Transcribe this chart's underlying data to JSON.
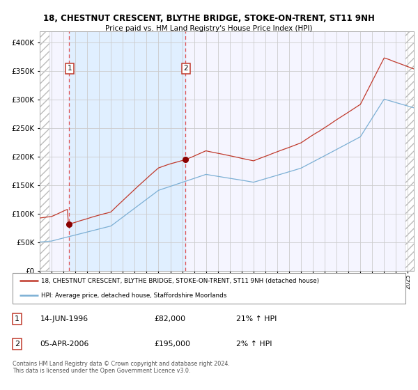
{
  "title": "18, CHESTNUT CRESCENT, BLYTHE BRIDGE, STOKE-ON-TRENT, ST11 9NH",
  "subtitle": "Price paid vs. HM Land Registry's House Price Index (HPI)",
  "sale1_x": 1996.458,
  "sale1_price": 82000,
  "sale2_x": 2006.25,
  "sale2_price": 195000,
  "hpi_line_color": "#7bafd4",
  "price_line_color": "#c0392b",
  "marker_color": "#8b0000",
  "vline_color": "#e05050",
  "shade_color": "#ddeeff",
  "grid_color": "#cccccc",
  "plot_bg_color": "#f5f5ff",
  "legend_text1": "18, CHESTNUT CRESCENT, BLYTHE BRIDGE, STOKE-ON-TRENT, ST11 9NH (detached house)",
  "legend_text2": "HPI: Average price, detached house, Staffordshire Moorlands",
  "footer": "Contains HM Land Registry data © Crown copyright and database right 2024.\nThis data is licensed under the Open Government Licence v3.0.",
  "xmin": 1994.0,
  "xmax": 2025.5,
  "ymin": 0,
  "ymax": 420000,
  "yticks": [
    0,
    50000,
    100000,
    150000,
    200000,
    250000,
    300000,
    350000,
    400000
  ]
}
